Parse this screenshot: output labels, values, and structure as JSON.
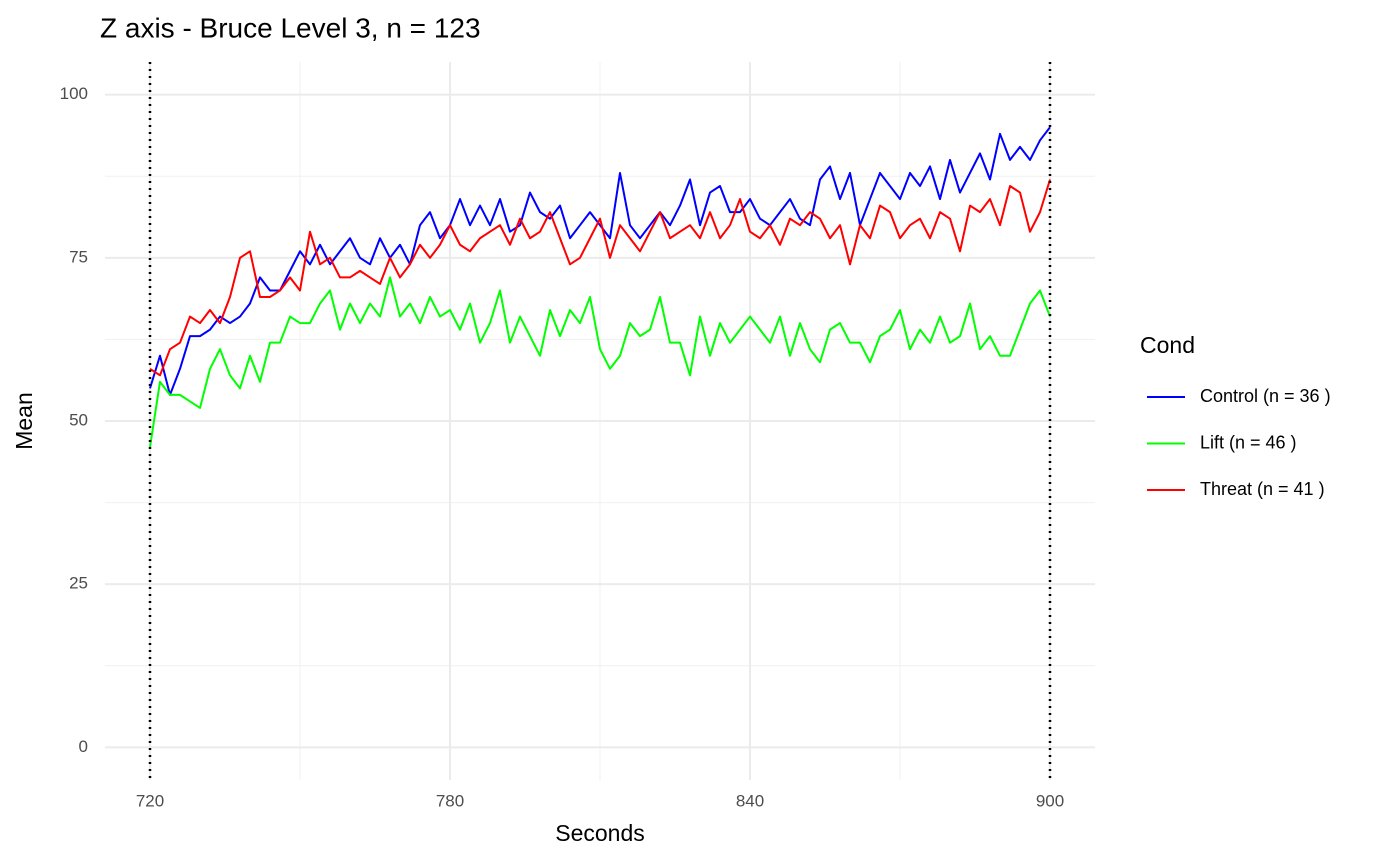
{
  "chart_data": {
    "type": "line",
    "title": "Z axis - Bruce Level 3, n =  123",
    "x_label": "Seconds",
    "y_label": "Mean",
    "legend_title": "Cond",
    "legend": "right",
    "xlim": [
      711,
      909
    ],
    "ylim": [
      -5,
      105
    ],
    "xticks": [
      720,
      780,
      840,
      900
    ],
    "yticks": [
      0,
      25,
      50,
      75,
      100
    ],
    "xminor": [
      750,
      810,
      870
    ],
    "yminor": [
      12.5,
      37.5,
      62.5,
      87.5
    ],
    "grid": true,
    "vlines": [
      720,
      900
    ],
    "x": [
      720,
      722,
      724,
      726,
      728,
      730,
      732,
      734,
      736,
      738,
      740,
      742,
      744,
      746,
      748,
      750,
      752,
      754,
      756,
      758,
      760,
      762,
      764,
      766,
      768,
      770,
      772,
      774,
      776,
      778,
      780,
      782,
      784,
      786,
      788,
      790,
      792,
      794,
      796,
      798,
      800,
      802,
      804,
      806,
      808,
      810,
      812,
      814,
      816,
      818,
      820,
      822,
      824,
      826,
      828,
      830,
      832,
      834,
      836,
      838,
      840,
      842,
      844,
      846,
      848,
      850,
      852,
      854,
      856,
      858,
      860,
      862,
      864,
      866,
      868,
      870,
      872,
      874,
      876,
      878,
      880,
      882,
      884,
      886,
      888,
      890,
      892,
      894,
      896,
      898,
      900
    ],
    "series": [
      {
        "name": "Control (n = 36 )",
        "color": "#0000ff",
        "values": [
          55,
          60,
          54,
          58,
          63,
          63,
          64,
          66,
          65,
          66,
          68,
          72,
          70,
          70,
          73,
          76,
          74,
          77,
          74,
          76,
          78,
          75,
          74,
          78,
          75,
          77,
          74,
          80,
          82,
          78,
          80,
          84,
          80,
          83,
          80,
          84,
          79,
          80,
          85,
          82,
          81,
          83,
          78,
          80,
          82,
          80,
          78,
          88,
          80,
          78,
          80,
          82,
          80,
          83,
          87,
          80,
          85,
          86,
          82,
          82,
          84,
          81,
          80,
          82,
          84,
          81,
          80,
          87,
          89,
          84,
          88,
          80,
          84,
          88,
          86,
          84,
          88,
          86,
          89,
          84,
          90,
          85,
          88,
          91,
          87,
          94,
          90,
          92,
          90,
          93,
          95
        ]
      },
      {
        "name": "Lift (n = 46 )",
        "color": "#00ff00",
        "values": [
          46,
          56,
          54,
          54,
          53,
          52,
          58,
          61,
          57,
          55,
          60,
          56,
          62,
          62,
          66,
          65,
          65,
          68,
          70,
          64,
          68,
          65,
          68,
          66,
          72,
          66,
          68,
          65,
          69,
          66,
          67,
          64,
          68,
          62,
          65,
          70,
          62,
          66,
          63,
          60,
          67,
          63,
          67,
          65,
          69,
          61,
          58,
          60,
          65,
          63,
          64,
          69,
          62,
          62,
          57,
          66,
          60,
          65,
          62,
          64,
          66,
          64,
          62,
          66,
          60,
          65,
          61,
          59,
          64,
          65,
          62,
          62,
          59,
          63,
          64,
          67,
          61,
          64,
          62,
          66,
          62,
          63,
          68,
          61,
          63,
          60,
          60,
          64,
          68,
          70,
          66
        ]
      },
      {
        "name": "Threat (n = 41 )",
        "color": "#ff0000",
        "values": [
          58,
          57,
          61,
          62,
          66,
          65,
          67,
          65,
          69,
          75,
          76,
          69,
          69,
          70,
          72,
          70,
          79,
          74,
          75,
          72,
          72,
          73,
          72,
          71,
          75,
          72,
          74,
          77,
          75,
          77,
          80,
          77,
          76,
          78,
          79,
          80,
          77,
          81,
          78,
          79,
          82,
          78,
          74,
          75,
          78,
          81,
          75,
          80,
          78,
          76,
          79,
          82,
          78,
          79,
          80,
          78,
          82,
          78,
          80,
          84,
          79,
          78,
          80,
          77,
          81,
          80,
          82,
          81,
          78,
          80,
          74,
          80,
          78,
          83,
          82,
          78,
          80,
          81,
          78,
          82,
          81,
          76,
          83,
          82,
          84,
          80,
          86,
          85,
          79,
          82,
          87
        ]
      }
    ]
  }
}
